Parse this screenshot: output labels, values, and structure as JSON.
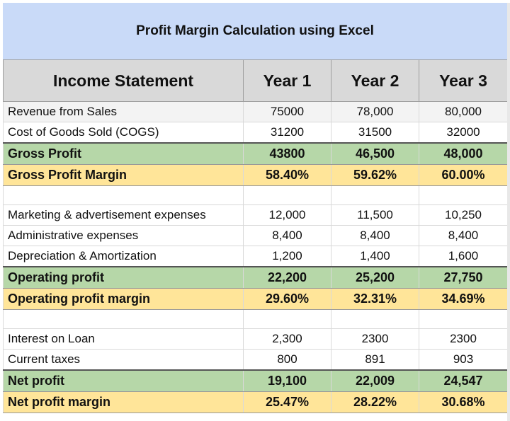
{
  "title": "Profit Margin Calculation using Excel",
  "header": {
    "label": "Income Statement",
    "years": [
      "Year 1",
      "Year 2",
      "Year 3"
    ]
  },
  "rows": [
    {
      "label": "Revenue from Sales",
      "values": [
        "75000",
        "78,000",
        "80,000"
      ]
    },
    {
      "label": "Cost of Goods Sold (COGS)",
      "values": [
        "31200",
        "31500",
        "32000"
      ]
    },
    {
      "label": "Gross Profit",
      "values": [
        "43800",
        "46,500",
        "48,000"
      ]
    },
    {
      "label": "Gross Profit Margin",
      "values": [
        "58.40%",
        "59.62%",
        "60.00%"
      ]
    },
    {
      "label": "Marketing & advertisement expenses",
      "values": [
        "12,000",
        "11,500",
        "10,250"
      ]
    },
    {
      "label": "Administrative expenses",
      "values": [
        "8,400",
        "8,400",
        "8,400"
      ]
    },
    {
      "label": "Depreciation & Amortization",
      "values": [
        "1,200",
        "1,400",
        "1,600"
      ]
    },
    {
      "label": "Operating profit",
      "values": [
        "22,200",
        "25,200",
        "27,750"
      ]
    },
    {
      "label": "Operating profit margin",
      "values": [
        "29.60%",
        "32.31%",
        "34.69%"
      ]
    },
    {
      "label": "Interest on Loan",
      "values": [
        "2,300",
        "2300",
        "2300"
      ]
    },
    {
      "label": "Current taxes",
      "values": [
        "800",
        "891",
        "903"
      ]
    },
    {
      "label": "Net profit",
      "values": [
        "19,100",
        "22,009",
        "24,547"
      ]
    },
    {
      "label": "Net profit margin",
      "values": [
        "25.47%",
        "28.22%",
        "30.68%"
      ]
    }
  ],
  "colors": {
    "title_bg": "#c9daf8",
    "header_bg": "#d9d9d9",
    "profit_bg": "#b6d7a8",
    "margin_bg": "#ffe599"
  }
}
